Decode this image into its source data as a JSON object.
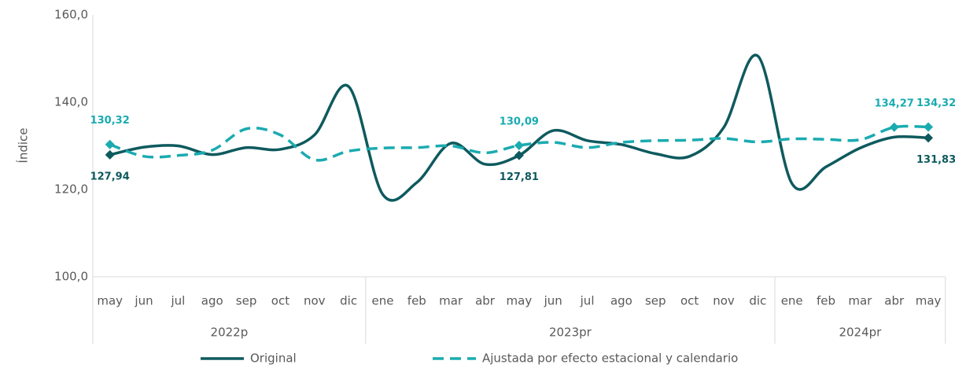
{
  "chart_data": {
    "type": "line",
    "y_label": "Índice",
    "categories": [
      "may",
      "jun",
      "jul",
      "ago",
      "sep",
      "oct",
      "nov",
      "dic",
      "ene",
      "feb",
      "mar",
      "abr",
      "may",
      "jun",
      "jul",
      "ago",
      "sep",
      "oct",
      "nov",
      "dic",
      "ene",
      "feb",
      "mar",
      "abr",
      "may"
    ],
    "groups": [
      {
        "name": "2022p",
        "span": 8
      },
      {
        "name": "2023pr",
        "span": 12
      },
      {
        "name": "2024pr",
        "span": 5
      }
    ],
    "ylim": [
      100,
      160
    ],
    "yticks": [
      {
        "value": 100,
        "label": "100,0"
      },
      {
        "value": 120,
        "label": "120,0"
      },
      {
        "value": 140,
        "label": "140,0"
      },
      {
        "value": 160,
        "label": "160,0"
      }
    ],
    "grid": false,
    "legend": "bottom",
    "series": [
      {
        "name": "Original",
        "color": "#0e5a5e",
        "dash": false,
        "values": [
          127.94,
          129.7,
          130.0,
          128.0,
          129.6,
          129.2,
          132.5,
          143.6,
          118.9,
          121.6,
          130.6,
          125.8,
          127.81,
          133.5,
          131.2,
          130.3,
          128.2,
          127.6,
          134.2,
          150.6,
          121.4,
          125.2,
          129.5,
          132.0,
          131.83
        ],
        "value_labels": [
          "127,94",
          null,
          null,
          null,
          null,
          null,
          null,
          null,
          null,
          null,
          null,
          null,
          "127,81",
          null,
          null,
          null,
          null,
          null,
          null,
          null,
          null,
          null,
          null,
          null,
          "131,83"
        ]
      },
      {
        "name": "Ajustada por efecto estacional y calendario",
        "color": "#1aabb0",
        "dash": true,
        "values": [
          130.32,
          127.6,
          127.8,
          129.0,
          133.9,
          132.5,
          126.8,
          128.8,
          129.5,
          129.6,
          130.0,
          128.4,
          130.09,
          130.8,
          129.6,
          130.8,
          131.2,
          131.3,
          131.7,
          130.9,
          131.6,
          131.5,
          131.4,
          134.27,
          134.32
        ],
        "value_labels": [
          "130,32",
          null,
          null,
          null,
          null,
          null,
          null,
          null,
          null,
          null,
          null,
          null,
          "130,09",
          null,
          null,
          null,
          null,
          null,
          null,
          null,
          null,
          null,
          null,
          "134,27",
          "134,32"
        ]
      }
    ]
  }
}
